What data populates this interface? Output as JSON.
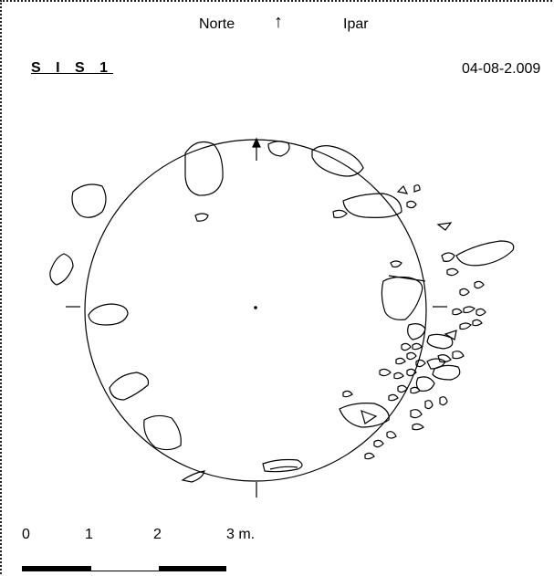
{
  "north": {
    "left": "Norte",
    "arrow": "↑",
    "right": "Ipar"
  },
  "title": "S I S 1",
  "date": "04-08-2.009",
  "scale": {
    "labels": [
      "0",
      "1",
      "2",
      "3 m."
    ]
  }
}
